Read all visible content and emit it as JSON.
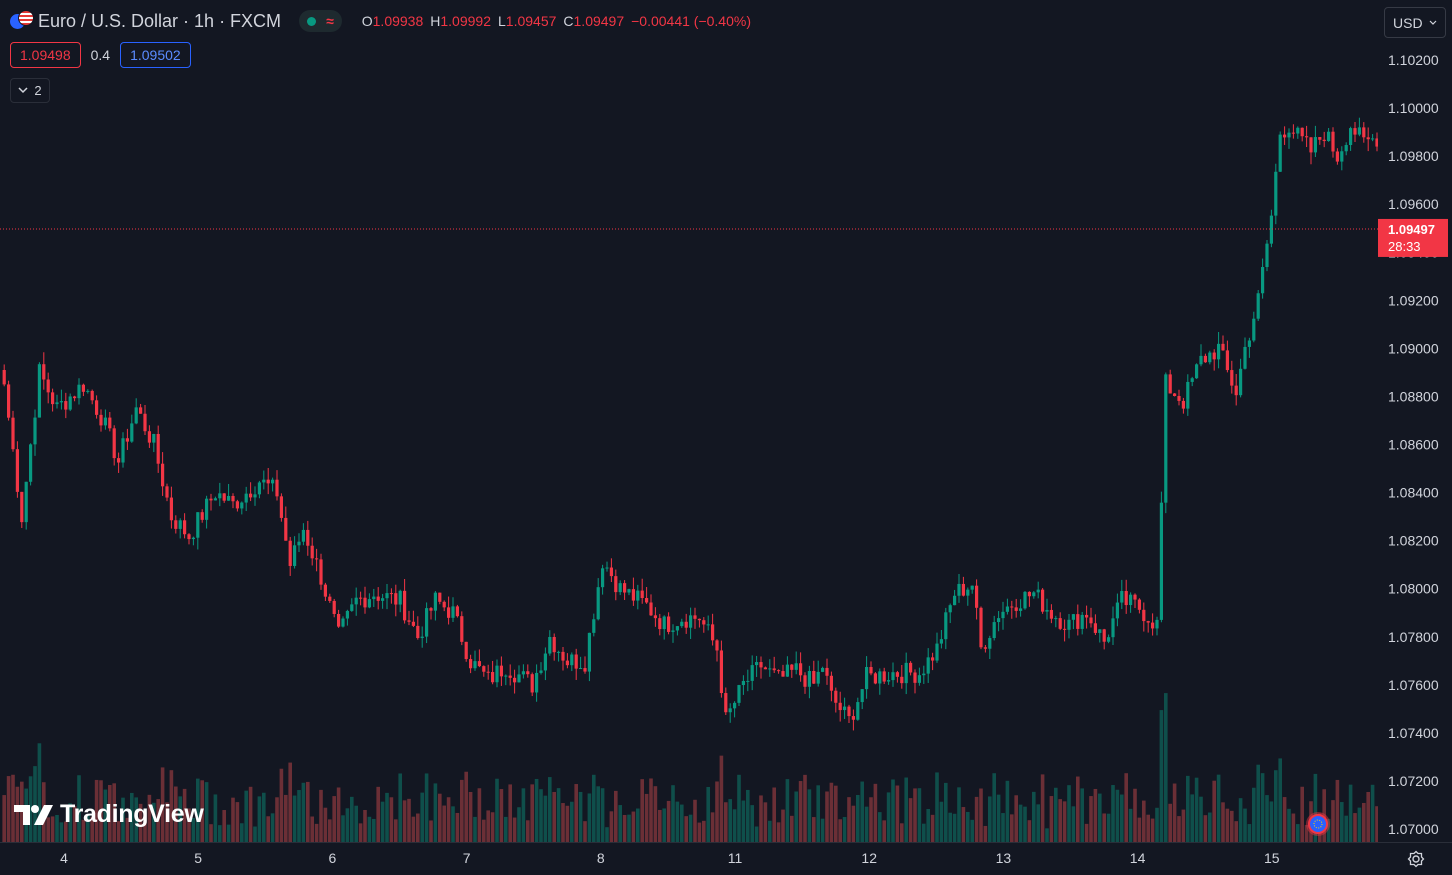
{
  "header": {
    "title": "Euro / U.S. Dollar · 1h · FXCM",
    "market_status_icon": "green-dot-icon",
    "feed_icon": "approx-icon",
    "ohlc": {
      "o_label": "O",
      "o": "1.09938",
      "h_label": "H",
      "h": "1.09992",
      "l_label": "L",
      "l": "1.09457",
      "c_label": "C",
      "c": "1.09497",
      "change": "−0.00441 (−0.40%)"
    },
    "bid": "1.09498",
    "spread": "0.4",
    "ask": "1.09502",
    "collapse_count": "2"
  },
  "currency_selector": {
    "label": "USD"
  },
  "logo": {
    "text": "TradingView"
  },
  "current_price": {
    "price": "1.09497",
    "countdown": "28:33"
  },
  "colors": {
    "background": "#131722",
    "up": "#089981",
    "down": "#f23645",
    "volume_up": "#0f4f4b",
    "volume_down": "#6b2f36",
    "axis_text": "#d1d4dc"
  },
  "chart_data": {
    "type": "candlestick",
    "symbol": "EURUSD",
    "interval": "1h",
    "y_ticks": [
      "1.10200",
      "1.10000",
      "1.09800",
      "1.09600",
      "1.09400",
      "1.09200",
      "1.09000",
      "1.08800",
      "1.08600",
      "1.08400",
      "1.08200",
      "1.08000",
      "1.07800",
      "1.07600",
      "1.07400",
      "1.07200",
      "1.07000"
    ],
    "ylim": [
      1.0695,
      1.1026
    ],
    "x_ticks": [
      "4",
      "5",
      "6",
      "7",
      "8",
      "11",
      "12",
      "13",
      "14",
      "15"
    ],
    "grid": false,
    "last_price_line": 1.09497,
    "price_path": [
      [
        0,
        1.0885
      ],
      [
        4,
        1.083
      ],
      [
        8,
        1.089
      ],
      [
        12,
        1.0875
      ],
      [
        18,
        1.0885
      ],
      [
        22,
        1.0872
      ],
      [
        26,
        1.0853
      ],
      [
        30,
        1.0875
      ],
      [
        34,
        1.086
      ],
      [
        38,
        1.083
      ],
      [
        42,
        1.0822
      ],
      [
        48,
        1.084
      ],
      [
        52,
        1.0835
      ],
      [
        58,
        1.0845
      ],
      [
        62,
        1.084
      ],
      [
        65,
        1.081
      ],
      [
        68,
        1.0825
      ],
      [
        72,
        1.0805
      ],
      [
        76,
        1.078
      ],
      [
        80,
        1.0795
      ],
      [
        84,
        1.0798
      ],
      [
        90,
        1.0795
      ],
      [
        94,
        1.078
      ],
      [
        98,
        1.0795
      ],
      [
        102,
        1.079
      ],
      [
        106,
        1.077
      ],
      [
        110,
        1.0762
      ],
      [
        114,
        1.0768
      ],
      [
        120,
        1.076
      ],
      [
        124,
        1.078
      ],
      [
        128,
        1.077
      ],
      [
        132,
        1.077
      ],
      [
        136,
        1.0812
      ],
      [
        140,
        1.08
      ],
      [
        146,
        1.0793
      ],
      [
        150,
        1.0785
      ],
      [
        154,
        1.0788
      ],
      [
        158,
        1.0788
      ],
      [
        162,
        1.0775
      ],
      [
        164,
        1.0745
      ],
      [
        168,
        1.076
      ],
      [
        172,
        1.0768
      ],
      [
        176,
        1.0762
      ],
      [
        180,
        1.0766
      ],
      [
        184,
        1.076
      ],
      [
        186,
        1.0768
      ],
      [
        188,
        1.0755
      ],
      [
        192,
        1.0745
      ],
      [
        196,
        1.0763
      ],
      [
        202,
        1.0765
      ],
      [
        208,
        1.0765
      ],
      [
        212,
        1.0775
      ],
      [
        216,
        1.0798
      ],
      [
        220,
        1.0802
      ],
      [
        222,
        1.0775
      ],
      [
        226,
        1.079
      ],
      [
        230,
        1.0795
      ],
      [
        234,
        1.0798
      ],
      [
        238,
        1.079
      ],
      [
        242,
        1.0785
      ],
      [
        246,
        1.079
      ],
      [
        250,
        1.0778
      ],
      [
        254,
        1.0795
      ],
      [
        258,
        1.0792
      ],
      [
        262,
        1.0785
      ],
      [
        264,
        1.0885
      ],
      [
        268,
        1.0878
      ],
      [
        272,
        1.0895
      ],
      [
        276,
        1.09
      ],
      [
        278,
        1.089
      ],
      [
        280,
        1.0882
      ],
      [
        282,
        1.09
      ],
      [
        285,
        1.092
      ],
      [
        288,
        1.0955
      ],
      [
        290,
        1.099
      ],
      [
        292,
        1.0993
      ],
      [
        294,
        1.0988
      ],
      [
        297,
        1.0982
      ],
      [
        300,
        1.099
      ],
      [
        303,
        1.098
      ],
      [
        306,
        1.0993
      ],
      [
        309,
        1.0985
      ],
      [
        312,
        1.0988
      ],
      [
        313,
        1.09497
      ]
    ],
    "volume": {
      "max_bar_ratio": 1.0
    }
  }
}
